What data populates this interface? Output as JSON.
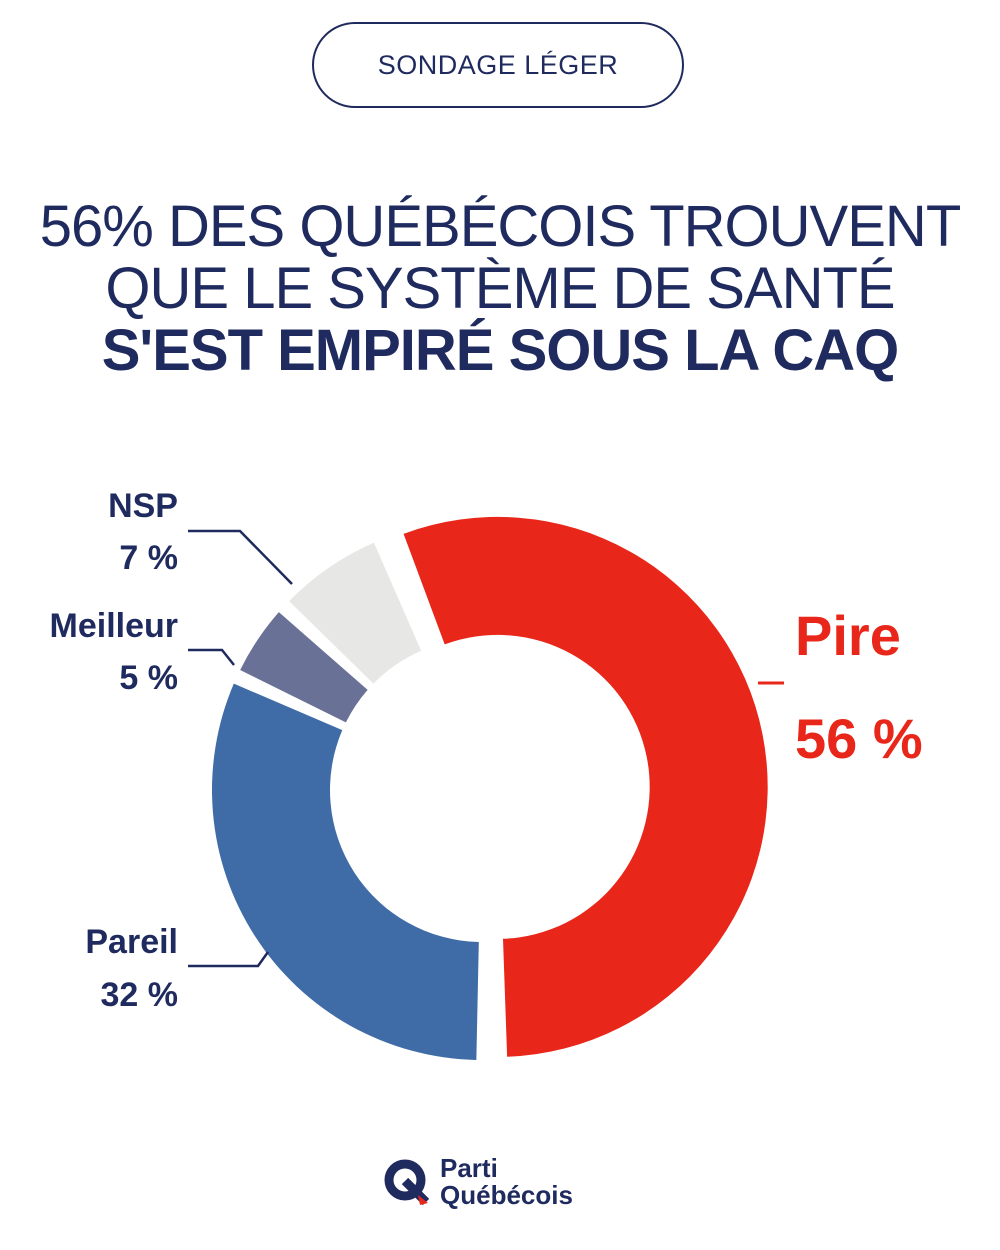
{
  "badge": "SONDAGE LÉGER",
  "headline": {
    "line1": "56% DES QUÉBÉCOIS TROUVENT",
    "line2": "QUE LE SYSTÈME DE SANTÉ",
    "line3": "S'EST EMPIRÉ SOUS LA CAQ"
  },
  "chart_data": {
    "type": "pie",
    "subtype": "donut",
    "title": "56% DES QUÉBÉCOIS TROUVENT QUE LE SYSTÈME DE SANTÉ S'EST EMPIRÉ SOUS LA CAQ",
    "slices": [
      {
        "label": "Pire",
        "value": 56,
        "value_label": "56 %",
        "color": "#e8271a",
        "exploded": true
      },
      {
        "label": "Pareil",
        "value": 32,
        "value_label": "32 %",
        "color": "#3f6ca6"
      },
      {
        "label": "Meilleur",
        "value": 5,
        "value_label": "5 %",
        "color": "#6a7196"
      },
      {
        "label": "NSP",
        "value": 7,
        "value_label": "7 %",
        "color": "#e7e8e5"
      }
    ],
    "label_color": "#1f2a5e",
    "highlight_color": "#e8271a"
  },
  "logo": {
    "line1": "Parti",
    "line2": "Québécois",
    "color": "#1f2a5e"
  }
}
